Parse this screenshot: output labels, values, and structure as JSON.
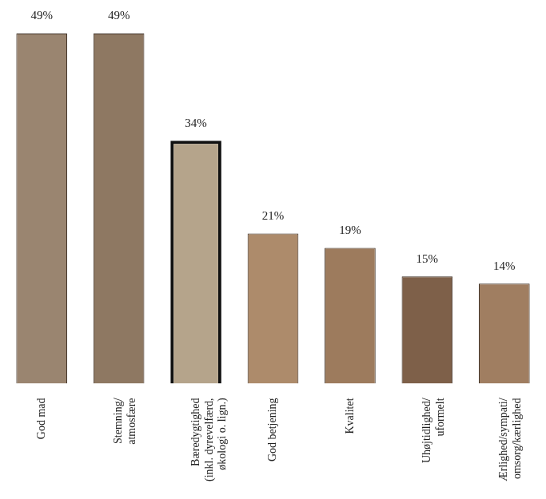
{
  "chart_data": {
    "type": "bar",
    "categories": [
      [
        "God mad"
      ],
      [
        "Stemning/",
        "atmosfære"
      ],
      [
        "Bæredygtighed",
        "(inkl. dyrevelfærd,",
        "økologi o. lign.)"
      ],
      [
        "God betjening"
      ],
      [
        "Kvalitet"
      ],
      [
        "Uhøjtidlighed/",
        "uformelt"
      ],
      [
        "Ærlighed/sympati/",
        "omsorg/kærlighed"
      ]
    ],
    "values": [
      49,
      49,
      34,
      21,
      19,
      15,
      14
    ],
    "value_labels": [
      "49%",
      "49%",
      "34%",
      "21%",
      "19%",
      "15%",
      "14%"
    ],
    "data_labels": true,
    "colors": [
      "#9a8570",
      "#8e7862",
      "#b5a48b",
      "#ad8b6b",
      "#9d7b5d",
      "#7e6049",
      "#a07e61"
    ],
    "ylim": [
      0,
      49
    ],
    "grid": false,
    "tick_labels": "x"
  }
}
